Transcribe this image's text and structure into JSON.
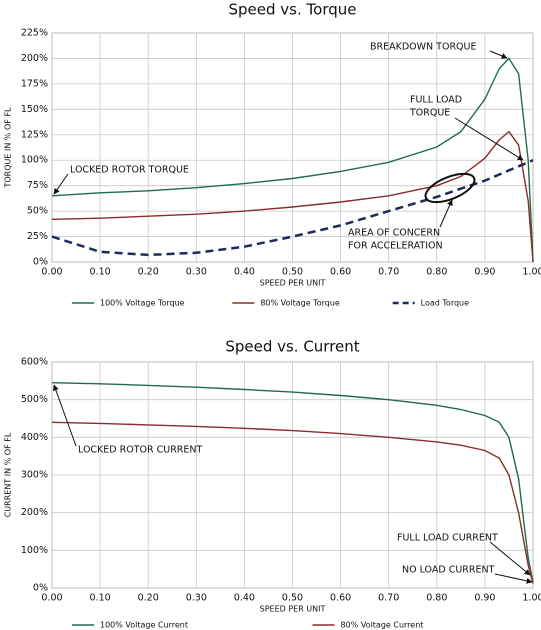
{
  "chart_data": [
    {
      "type": "line",
      "title": "Speed vs. Torque",
      "xlabel": "SPEED PER UNIT",
      "ylabel": "TORQUE IN % OF FL",
      "x": [
        0,
        0.1,
        0.2,
        0.3,
        0.4,
        0.5,
        0.6,
        0.7,
        0.8,
        0.85,
        0.9,
        0.93,
        0.95,
        0.97,
        0.99,
        1.0
      ],
      "series": [
        {
          "name": "100% Voltage Torque",
          "color": "#1f6b4c",
          "values": [
            65,
            68,
            70,
            73,
            77,
            82,
            89,
            98,
            113,
            128,
            160,
            190,
            200,
            185,
            100,
            0
          ]
        },
        {
          "name": "80% Voltage Torque",
          "color": "#8b2b2b",
          "values": [
            42,
            43,
            45,
            47,
            50,
            54,
            59,
            65,
            75,
            84,
            102,
            120,
            128,
            115,
            60,
            0
          ]
        },
        {
          "name": "Load Torque",
          "color": "#1c2b5c",
          "dashed": true,
          "values": [
            25,
            10,
            7,
            9,
            15,
            25,
            36,
            50,
            64,
            72,
            80,
            86,
            90,
            94,
            98,
            100
          ]
        }
      ],
      "xlim": [
        0,
        1
      ],
      "ylim": [
        0,
        225
      ],
      "xticks": [
        {
          "value": 0,
          "label": "0.00"
        },
        {
          "value": 0.1,
          "label": "0.10"
        },
        {
          "value": 0.2,
          "label": "0.20"
        },
        {
          "value": 0.3,
          "label": "0.30"
        },
        {
          "value": 0.4,
          "label": "0.40"
        },
        {
          "value": 0.5,
          "label": "0.50"
        },
        {
          "value": 0.6,
          "label": "0.60"
        },
        {
          "value": 0.7,
          "label": "0.70"
        },
        {
          "value": 0.8,
          "label": "0.80"
        },
        {
          "value": 0.9,
          "label": "0.90"
        },
        {
          "value": 1,
          "label": "1.00"
        }
      ],
      "yticks": [
        {
          "value": 0,
          "label": "0%"
        },
        {
          "value": 25,
          "label": "25%"
        },
        {
          "value": 50,
          "label": "50%"
        },
        {
          "value": 75,
          "label": "75%"
        },
        {
          "value": 100,
          "label": "100%"
        },
        {
          "value": 125,
          "label": "125%"
        },
        {
          "value": 150,
          "label": "150%"
        },
        {
          "value": 175,
          "label": "175%"
        },
        {
          "value": 200,
          "label": "200%"
        },
        {
          "value": 225,
          "label": "225%"
        }
      ],
      "grid": true,
      "annotations": [
        [
          "BREAKDOWN TORQUE"
        ],
        [
          "FULL LOAD",
          "TORQUE"
        ],
        [
          "LOCKED ROTOR TORQUE"
        ],
        [
          "AREA OF CONCERN",
          "FOR ACCELERATION"
        ]
      ]
    },
    {
      "type": "line",
      "title": "Speed vs. Current",
      "xlabel": "SPEED PER UNIT",
      "ylabel": "CURRENT IN % OF FL",
      "x": [
        0,
        0.1,
        0.2,
        0.3,
        0.4,
        0.5,
        0.6,
        0.7,
        0.8,
        0.85,
        0.9,
        0.93,
        0.95,
        0.97,
        0.99,
        1.0
      ],
      "series": [
        {
          "name": "100% Voltage Current",
          "color": "#1f6b4c",
          "values": [
            545,
            542,
            538,
            533,
            527,
            520,
            511,
            500,
            485,
            474,
            458,
            440,
            400,
            290,
            80,
            15
          ]
        },
        {
          "name": "80% Voltage Current",
          "color": "#8b2b2b",
          "values": [
            440,
            437,
            433,
            429,
            424,
            418,
            410,
            400,
            388,
            379,
            365,
            345,
            300,
            200,
            60,
            12
          ]
        }
      ],
      "xlim": [
        0,
        1
      ],
      "ylim": [
        0,
        600
      ],
      "xticks": [
        {
          "value": 0,
          "label": "0.00"
        },
        {
          "value": 0.1,
          "label": "0.10"
        },
        {
          "value": 0.2,
          "label": "0.20"
        },
        {
          "value": 0.3,
          "label": "0.30"
        },
        {
          "value": 0.4,
          "label": "0.40"
        },
        {
          "value": 0.5,
          "label": "0.50"
        },
        {
          "value": 0.6,
          "label": "0.60"
        },
        {
          "value": 0.7,
          "label": "0.70"
        },
        {
          "value": 0.8,
          "label": "0.80"
        },
        {
          "value": 0.9,
          "label": "0.90"
        },
        {
          "value": 1,
          "label": "1.00"
        }
      ],
      "yticks": [
        {
          "value": 0,
          "label": "0%"
        },
        {
          "value": 100,
          "label": "100%"
        },
        {
          "value": 200,
          "label": "200%"
        },
        {
          "value": 300,
          "label": "300%"
        },
        {
          "value": 400,
          "label": "400%"
        },
        {
          "value": 500,
          "label": "500%"
        },
        {
          "value": 600,
          "label": "600%"
        }
      ],
      "grid": true,
      "annotations": [
        [
          "LOCKED ROTOR CURRENT"
        ],
        [
          "FULL LOAD CURRENT"
        ],
        [
          "NO LOAD CURRENT"
        ]
      ]
    }
  ]
}
